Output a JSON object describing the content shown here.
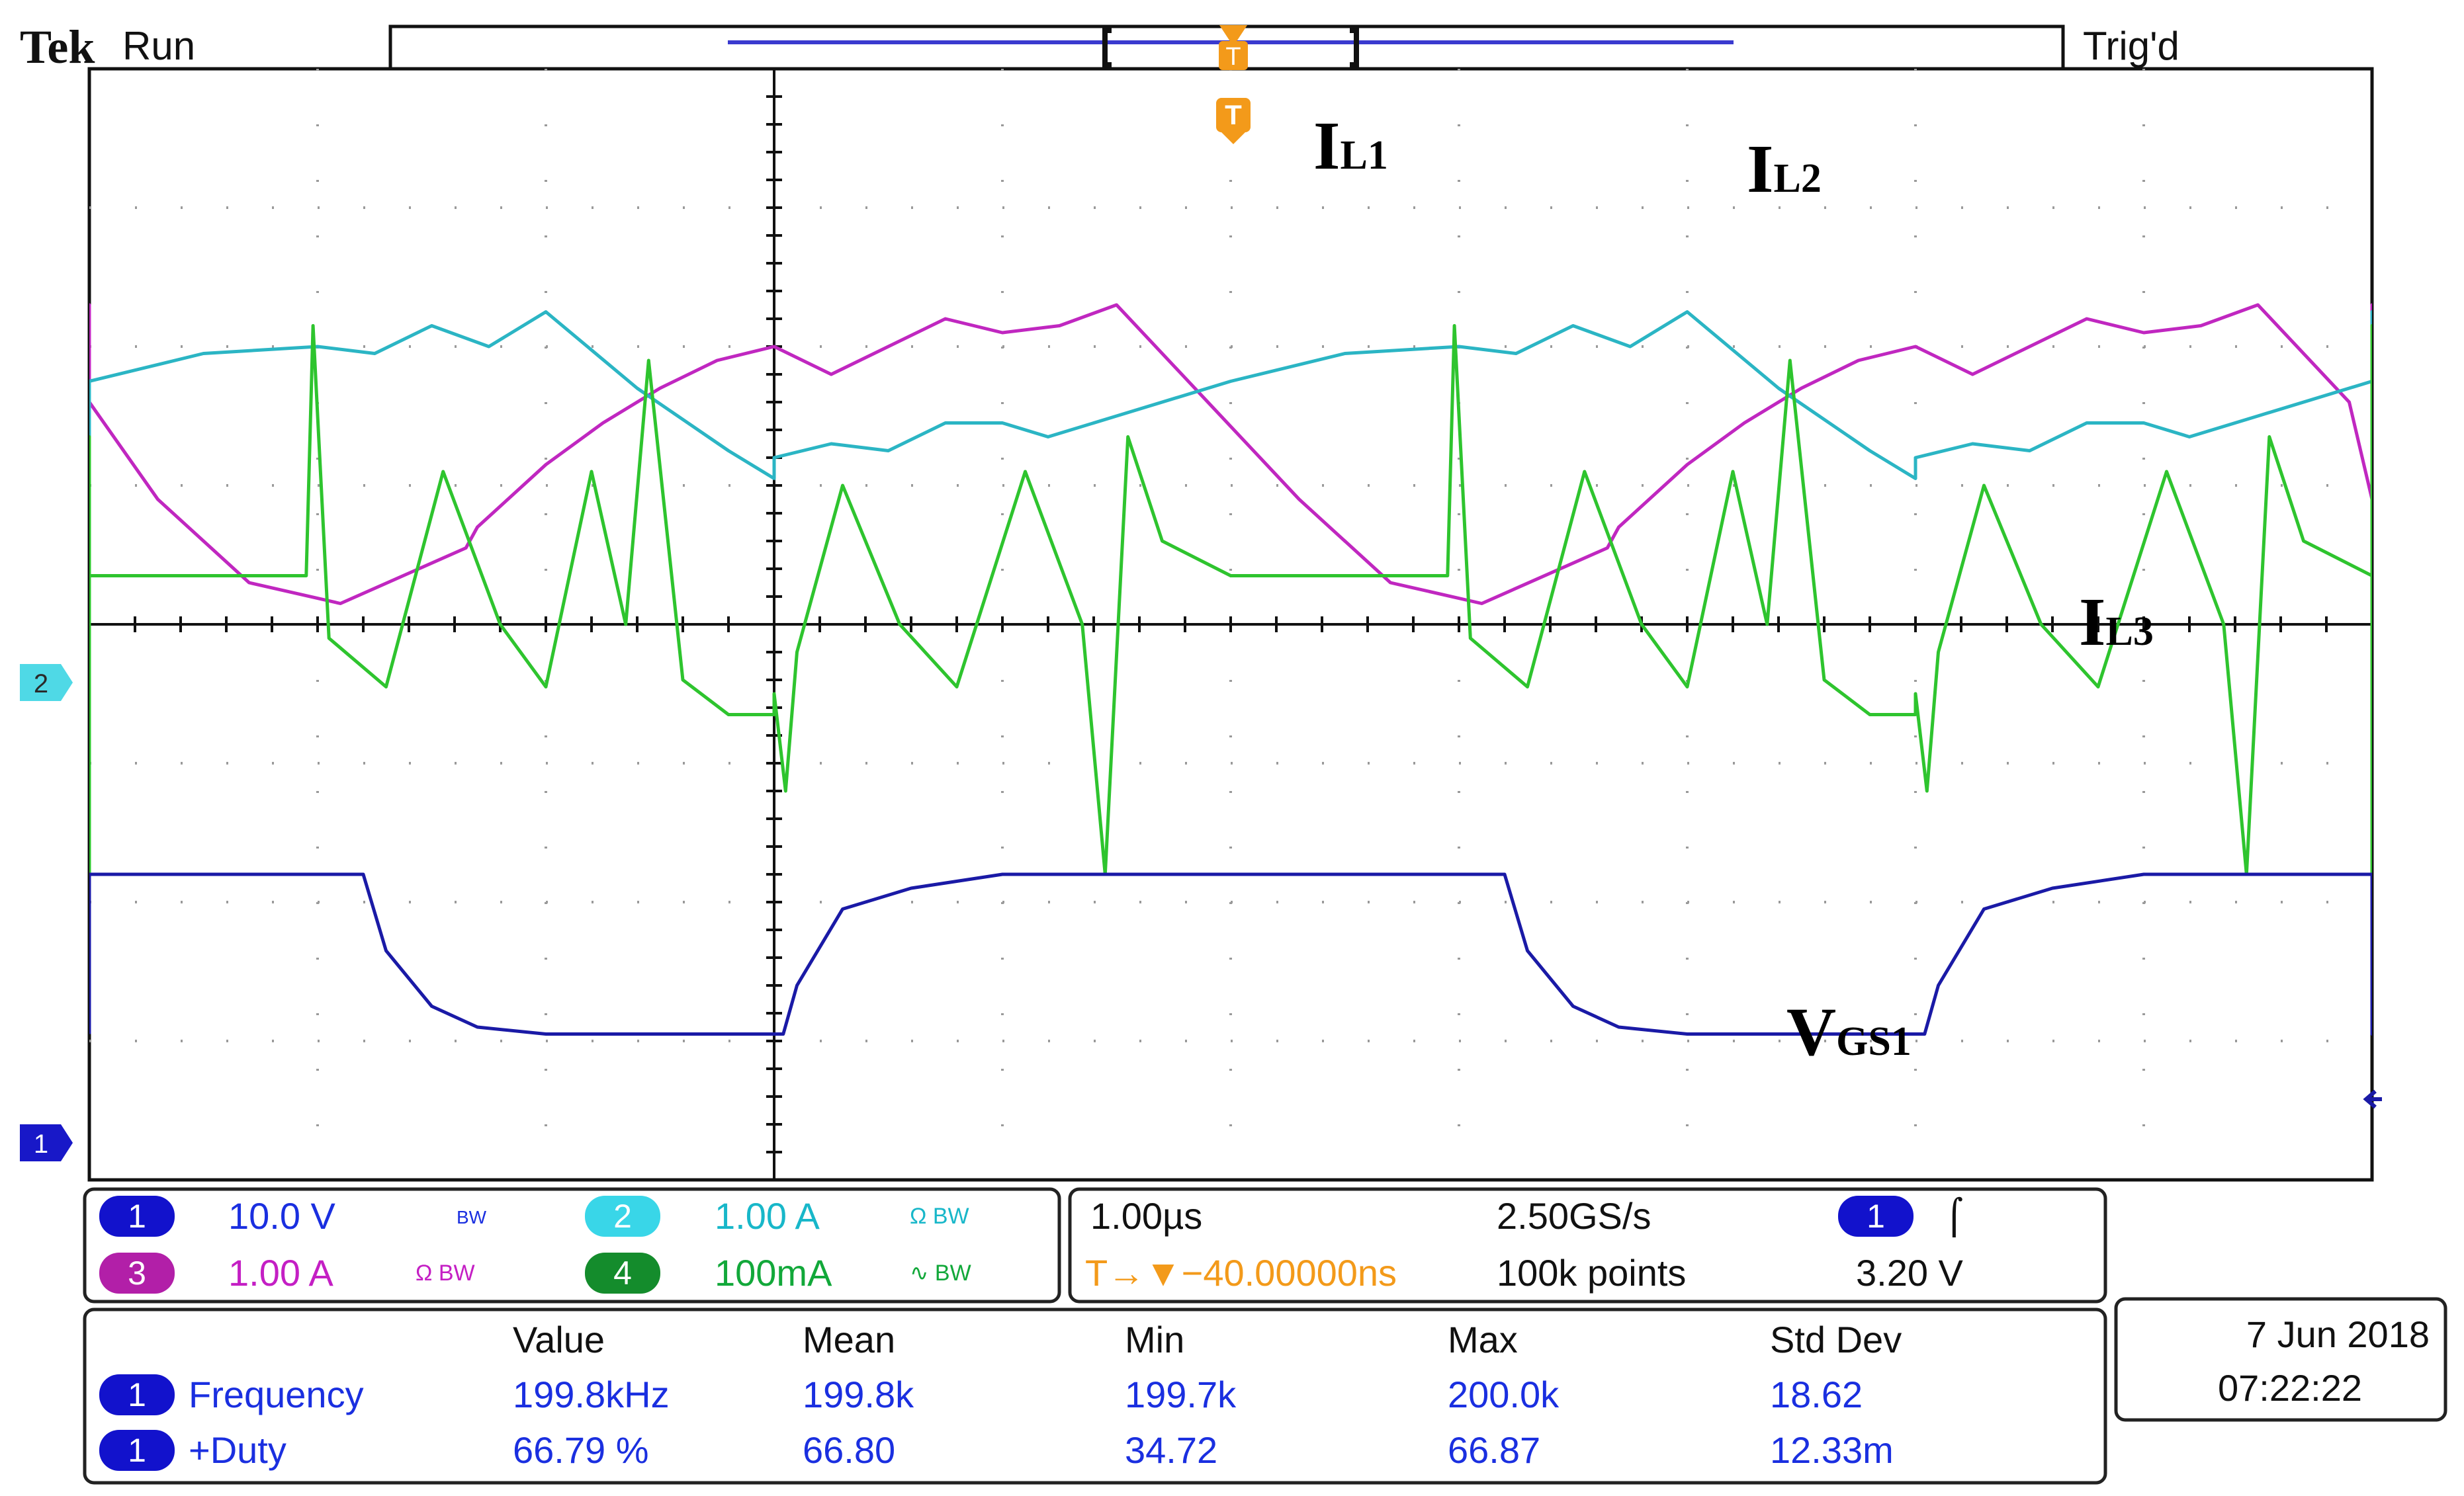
{
  "header": {
    "brand": "Tek",
    "status": "Run",
    "trigger_status": "Trig'd",
    "trigger_marker": "T"
  },
  "labels": {
    "il1": {
      "main": "I",
      "sub": "L1"
    },
    "il2": {
      "main": "I",
      "sub": "L2"
    },
    "il3": {
      "main": "I",
      "sub": "L3"
    },
    "vgs1": {
      "main": "V",
      "sub": "GS1"
    }
  },
  "channel_markers": {
    "ch1": "1",
    "ch2": "2"
  },
  "channels": [
    {
      "num": "1",
      "scale": "10.0 V",
      "flags": "BW",
      "color": "#1a2fe0",
      "badge": "#1212cc"
    },
    {
      "num": "2",
      "scale": "1.00 A",
      "flags": "Ω BW",
      "color": "#18b7c9",
      "badge": "#39d6e8"
    },
    {
      "num": "3",
      "scale": "1.00 A",
      "flags": "Ω BW",
      "color": "#c41fc4",
      "badge": "#b21fa8"
    },
    {
      "num": "4",
      "scale": "100mA",
      "flags": "∿ BW",
      "color": "#12a83a",
      "badge": "#148c2c"
    }
  ],
  "timebase": {
    "per_div": "1.00µs",
    "sample_rate": "2.50GS/s",
    "trigger_position": "T→▼−40.00000ns",
    "record_length": "100k points",
    "trigger_source": "1",
    "trigger_slope": "⌠",
    "trigger_level": "3.20 V"
  },
  "measurements": {
    "headers": [
      "Value",
      "Mean",
      "Min",
      "Max",
      "Std Dev"
    ],
    "rows": [
      {
        "ch": "1",
        "name": "Frequency",
        "value": "199.8kHz",
        "mean": "199.8k",
        "min": "199.7k",
        "max": "200.0k",
        "std": "18.62"
      },
      {
        "ch": "1",
        "name": "+Duty",
        "value": "66.79 %",
        "mean": "66.80",
        "min": "34.72",
        "max": "66.87",
        "std": "12.33m"
      }
    ]
  },
  "datetime": {
    "date": "7 Jun  2018",
    "time": "07:22:22"
  },
  "colors": {
    "ch1": "#1a1aa6",
    "ch2": "#2bb5c4",
    "ch3": "#c027c0",
    "ch4": "#2ec42e",
    "trigger": "#f39a1a"
  },
  "chart_data": {
    "type": "line",
    "title": "",
    "xlabel": "",
    "ylabel": "",
    "xlim": [
      -3.0,
      7.0
    ],
    "ylim": [
      -4.0,
      4.0
    ],
    "x_unit": "µs",
    "grid": true,
    "x_period": 5.0,
    "series": [
      {
        "name": "IL1 (Ch3)",
        "color": "#c027c0",
        "x": [
          0.0,
          0.25,
          0.5,
          0.75,
          1.0,
          1.25,
          1.5,
          1.9,
          2.3,
          2.7,
          3.1,
          3.65,
          3.7,
          4.0,
          4.25,
          4.5,
          4.75,
          5.0
        ],
        "y": [
          2.0,
          1.8,
          2.0,
          2.2,
          2.1,
          2.15,
          2.3,
          1.6,
          0.9,
          0.3,
          0.15,
          0.55,
          0.7,
          1.15,
          1.45,
          1.7,
          1.9,
          2.0
        ]
      },
      {
        "name": "IL2 (Ch2)",
        "color": "#2bb5c4",
        "x": [
          0.0,
          0.25,
          0.5,
          0.75,
          1.0,
          1.2,
          1.5,
          2.0,
          2.5,
          3.0,
          3.25,
          3.5,
          3.75,
          4.0,
          4.4,
          4.8,
          5.0
        ],
        "y": [
          1.2,
          1.3,
          1.25,
          1.45,
          1.45,
          1.35,
          1.5,
          1.75,
          1.95,
          2.0,
          1.95,
          2.15,
          2.0,
          2.25,
          1.7,
          1.25,
          1.05
        ]
      },
      {
        "name": "IL3 (Ch4)",
        "color": "#2ec42e",
        "x": [
          0.0,
          0.05,
          0.1,
          0.3,
          0.55,
          0.8,
          1.1,
          1.35,
          1.45,
          1.55,
          1.7,
          2.0,
          2.5,
          2.95,
          2.98,
          3.05,
          3.3,
          3.55,
          3.8,
          4.0,
          4.2,
          4.35,
          4.45,
          4.6,
          4.8,
          5.0
        ],
        "y": [
          -0.5,
          -1.2,
          -0.2,
          1.0,
          0.0,
          -0.45,
          1.1,
          0.0,
          -1.8,
          1.35,
          0.6,
          0.35,
          0.35,
          0.35,
          2.15,
          -0.1,
          -0.45,
          1.1,
          0.0,
          -0.45,
          1.1,
          0.0,
          1.9,
          -0.4,
          -0.65,
          -0.65
        ]
      },
      {
        "name": "VGS1 (Ch1)",
        "color": "#1a1aa6",
        "x": [
          0.0,
          0.04,
          0.1,
          0.3,
          0.6,
          1.0,
          1.5,
          2.0,
          2.5,
          3.2,
          3.3,
          3.5,
          3.7,
          4.0,
          4.5,
          5.0
        ],
        "y": [
          -2.95,
          -2.95,
          -2.6,
          -2.05,
          -1.9,
          -1.8,
          -1.8,
          -1.8,
          -1.8,
          -1.8,
          -2.35,
          -2.75,
          -2.9,
          -2.95,
          -2.95,
          -2.95
        ]
      }
    ]
  }
}
